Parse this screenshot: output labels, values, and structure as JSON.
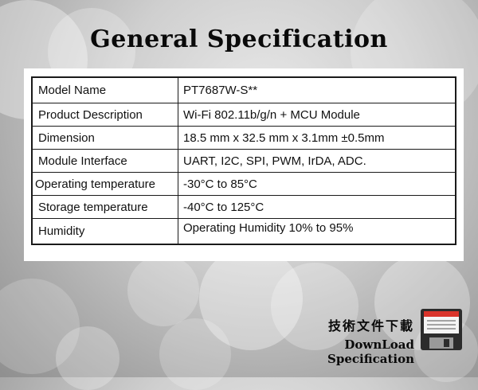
{
  "title": "General Specification",
  "spec_rows": [
    {
      "label": "Model Name",
      "value": "PT7687W-S**"
    },
    {
      "label": "Product Description",
      "value": "Wi-Fi 802.11b/g/n + MCU Module"
    },
    {
      "label": "Dimension",
      "value": "18.5 mm x 32.5 mm x 3.1mm ±0.5mm"
    },
    {
      "label": "Module Interface",
      "value": "UART, I2C, SPI, PWM, IrDA, ADC."
    },
    {
      "label": "Operating temperature",
      "value": "-30°C to 85°C"
    },
    {
      "label": "Storage temperature",
      "value": "-40°C to 125°C"
    },
    {
      "label": "Humidity",
      "value": "Operating Humidity 10% to 95%"
    }
  ],
  "download": {
    "label_zh": "技術文件下載",
    "label_en": "DownLoad Specification",
    "icon": "floppy-disk-icon",
    "accent_color": "#d9342b"
  }
}
